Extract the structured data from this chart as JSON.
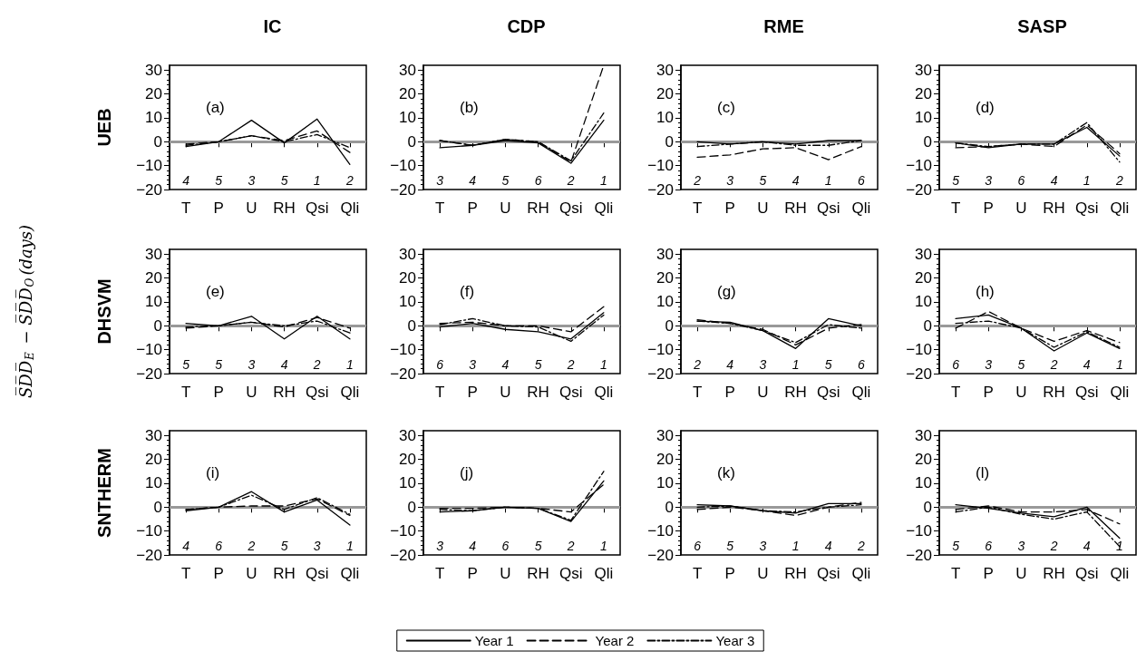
{
  "chart_data": [
    {
      "type": "line",
      "title": "IC",
      "ylabel": "UEB",
      "categories": [
        "T",
        "P",
        "U",
        "RH",
        "Qsi",
        "Qli"
      ],
      "ylim": [
        -20,
        32
      ],
      "yticks": [
        -20,
        -10,
        0,
        10,
        20,
        30
      ],
      "marker": "none",
      "ref_lines": [
        {
          "axis": "y",
          "value": 0,
          "color": "#999999"
        }
      ],
      "annotations": [
        "(a)",
        "4",
        "5",
        "3",
        "5",
        "1",
        "2"
      ],
      "series": [
        {
          "color": "#000000",
          "line_style": "solid",
          "values": [
            -2,
            0,
            9,
            -0.5,
            9.5,
            -9.5
          ]
        },
        {
          "color": "#000000",
          "line_style": "dashed",
          "values": [
            -1,
            0,
            2.5,
            0.5,
            4.5,
            -4.5
          ]
        },
        {
          "color": "#000000",
          "line_style": "dashdot",
          "values": [
            -1.5,
            0,
            2.5,
            0,
            3,
            -2.5
          ]
        }
      ]
    },
    {
      "type": "line",
      "title": "CDP",
      "categories": [
        "T",
        "P",
        "U",
        "RH",
        "Qsi",
        "Qli"
      ],
      "ylim": [
        -20,
        32
      ],
      "yticks": [
        -20,
        -10,
        0,
        10,
        20,
        30
      ],
      "marker": "none",
      "ref_lines": [
        {
          "axis": "y",
          "value": 0,
          "color": "#999999"
        }
      ],
      "annotations": [
        "(b)",
        "3",
        "4",
        "5",
        "6",
        "2",
        "1"
      ],
      "series": [
        {
          "color": "#000000",
          "line_style": "solid",
          "values": [
            -2.5,
            -1.5,
            0.5,
            -0.5,
            -9,
            9
          ]
        },
        {
          "color": "#000000",
          "line_style": "dashed",
          "values": [
            0.5,
            -1.5,
            1,
            0,
            -8.5,
            32
          ]
        },
        {
          "color": "#000000",
          "line_style": "dashdot",
          "values": [
            0.5,
            -1.5,
            1,
            0,
            -8,
            12
          ]
        }
      ]
    },
    {
      "type": "line",
      "title": "RME",
      "categories": [
        "T",
        "P",
        "U",
        "RH",
        "Qsi",
        "Qli"
      ],
      "ylim": [
        -20,
        32
      ],
      "yticks": [
        -20,
        -10,
        0,
        10,
        20,
        30
      ],
      "marker": "none",
      "ref_lines": [
        {
          "axis": "y",
          "value": 0,
          "color": "#999999"
        }
      ],
      "annotations": [
        "(c)",
        "2",
        "3",
        "5",
        "4",
        "1",
        "6"
      ],
      "series": [
        {
          "color": "#000000",
          "line_style": "solid",
          "values": [
            0,
            -1,
            0,
            -1,
            0.5,
            0.5
          ]
        },
        {
          "color": "#000000",
          "line_style": "dashed",
          "values": [
            -6.5,
            -5.5,
            -3,
            -2.5,
            -7.5,
            -2
          ]
        },
        {
          "color": "#000000",
          "line_style": "dashdot",
          "values": [
            -2,
            -1,
            0,
            -1.5,
            -1.5,
            0.5
          ]
        }
      ]
    },
    {
      "type": "line",
      "title": "SASP",
      "categories": [
        "T",
        "P",
        "U",
        "RH",
        "Qsi",
        "Qli"
      ],
      "ylim": [
        -20,
        32
      ],
      "yticks": [
        -20,
        -10,
        0,
        10,
        20,
        30
      ],
      "marker": "none",
      "ref_lines": [
        {
          "axis": "y",
          "value": 0,
          "color": "#999999"
        }
      ],
      "annotations": [
        "(d)",
        "5",
        "3",
        "6",
        "4",
        "1",
        "2"
      ],
      "series": [
        {
          "color": "#000000",
          "line_style": "solid",
          "values": [
            -0.5,
            -2.5,
            -1,
            -1,
            6,
            -6
          ]
        },
        {
          "color": "#000000",
          "line_style": "dashed",
          "values": [
            -2.5,
            -2,
            -1,
            -2,
            7,
            -5
          ]
        },
        {
          "color": "#000000",
          "line_style": "dashdot",
          "values": [
            -0.5,
            -2,
            -1,
            -1,
            8,
            -8.5
          ]
        }
      ]
    },
    {
      "type": "line",
      "ylabel": "DHSVM",
      "categories": [
        "T",
        "P",
        "U",
        "RH",
        "Qsi",
        "Qli"
      ],
      "ylim": [
        -20,
        32
      ],
      "yticks": [
        -20,
        -10,
        0,
        10,
        20,
        30
      ],
      "marker": "none",
      "ref_lines": [
        {
          "axis": "y",
          "value": 0,
          "color": "#999999"
        }
      ],
      "annotations": [
        "(e)",
        "5",
        "5",
        "3",
        "4",
        "2",
        "1",
        "S̅D̅D̅$_{E}$ − S̅D̅D̅$_{O}$(days)"
      ],
      "series": [
        {
          "color": "#000000",
          "line_style": "solid",
          "values": [
            1,
            0,
            4,
            -5.5,
            4,
            -5.5
          ]
        },
        {
          "color": "#000000",
          "line_style": "dashed",
          "values": [
            -1,
            0,
            1.5,
            -0.5,
            3.5,
            -1
          ]
        },
        {
          "color": "#000000",
          "line_style": "dashdot",
          "values": [
            -0.5,
            0,
            1.5,
            0,
            2,
            -3
          ]
        }
      ]
    },
    {
      "type": "line",
      "categories": [
        "T",
        "P",
        "U",
        "RH",
        "Qsi",
        "Qli"
      ],
      "ylim": [
        -20,
        32
      ],
      "yticks": [
        -20,
        -10,
        0,
        10,
        20,
        30
      ],
      "marker": "none",
      "ref_lines": [
        {
          "axis": "y",
          "value": 0,
          "color": "#999999"
        }
      ],
      "annotations": [
        "(f)",
        "6",
        "3",
        "4",
        "5",
        "2",
        "1"
      ],
      "series": [
        {
          "color": "#000000",
          "line_style": "solid",
          "values": [
            -0.5,
            1,
            -1.5,
            -2.5,
            -5.5,
            5.5
          ]
        },
        {
          "color": "#000000",
          "line_style": "dashed",
          "values": [
            1,
            1.5,
            0,
            0,
            -2.5,
            8
          ]
        },
        {
          "color": "#000000",
          "line_style": "dashdot",
          "values": [
            0.5,
            3,
            0,
            -0.5,
            -6.5,
            4.5
          ]
        }
      ]
    },
    {
      "type": "line",
      "categories": [
        "T",
        "P",
        "U",
        "RH",
        "Qsi",
        "Qli"
      ],
      "ylim": [
        -20,
        32
      ],
      "yticks": [
        -20,
        -10,
        0,
        10,
        20,
        30
      ],
      "marker": "none",
      "ref_lines": [
        {
          "axis": "y",
          "value": 0,
          "color": "#999999"
        }
      ],
      "annotations": [
        "(g)",
        "2",
        "4",
        "3",
        "1",
        "5",
        "6"
      ],
      "series": [
        {
          "color": "#000000",
          "line_style": "solid",
          "values": [
            2,
            1.5,
            -2,
            -9.5,
            3,
            0
          ]
        },
        {
          "color": "#000000",
          "line_style": "dashed",
          "values": [
            2.5,
            1,
            -1.5,
            -8,
            -1,
            0.5
          ]
        },
        {
          "color": "#000000",
          "line_style": "dashdot",
          "values": [
            2,
            1,
            -2,
            -7,
            0.5,
            -1
          ]
        }
      ]
    },
    {
      "type": "line",
      "categories": [
        "T",
        "P",
        "U",
        "RH",
        "Qsi",
        "Qli"
      ],
      "ylim": [
        -20,
        32
      ],
      "yticks": [
        -20,
        -10,
        0,
        10,
        20,
        30
      ],
      "marker": "none",
      "ref_lines": [
        {
          "axis": "y",
          "value": 0,
          "color": "#999999"
        }
      ],
      "annotations": [
        "(h)",
        "6",
        "3",
        "5",
        "2",
        "4",
        "1"
      ],
      "series": [
        {
          "color": "#000000",
          "line_style": "solid",
          "values": [
            3,
            4.5,
            -1,
            -10.5,
            -3,
            -9.5
          ]
        },
        {
          "color": "#000000",
          "line_style": "dashed",
          "values": [
            -1,
            6,
            -1,
            -6.5,
            -2,
            -7
          ]
        },
        {
          "color": "#000000",
          "line_style": "dashdot",
          "values": [
            1,
            2,
            -1,
            -9,
            -2.5,
            -9
          ]
        }
      ]
    },
    {
      "type": "line",
      "ylabel": "SNTHERM",
      "categories": [
        "T",
        "P",
        "U",
        "RH",
        "Qsi",
        "Qli"
      ],
      "ylim": [
        -20,
        32
      ],
      "yticks": [
        -20,
        -10,
        0,
        10,
        20,
        30
      ],
      "marker": "none",
      "ref_lines": [
        {
          "axis": "y",
          "value": 0,
          "color": "#999999"
        }
      ],
      "annotations": [
        "(i)",
        "4",
        "6",
        "2",
        "5",
        "3",
        "1"
      ],
      "series": [
        {
          "color": "#000000",
          "line_style": "solid",
          "values": [
            -1.5,
            0,
            6.5,
            -2,
            3,
            -7.5
          ]
        },
        {
          "color": "#000000",
          "line_style": "dashed",
          "values": [
            -1,
            0,
            0.5,
            0.5,
            3.5,
            -3.5
          ]
        },
        {
          "color": "#000000",
          "line_style": "dashdot",
          "values": [
            -1,
            0,
            5,
            -1,
            4,
            -3
          ]
        }
      ]
    },
    {
      "type": "line",
      "legend": "bottom",
      "categories": [
        "T",
        "P",
        "U",
        "RH",
        "Qsi",
        "Qli"
      ],
      "ylim": [
        -20,
        32
      ],
      "yticks": [
        -20,
        -10,
        0,
        10,
        20,
        30
      ],
      "marker": "none",
      "ref_lines": [
        {
          "axis": "y",
          "value": 0,
          "color": "#999999"
        }
      ],
      "annotations": [
        "(j)",
        "3",
        "4",
        "6",
        "5",
        "2",
        "1"
      ],
      "series": [
        {
          "name": "Year 1",
          "color": "#000000",
          "line_style": "solid",
          "values": [
            -2,
            -1.5,
            0,
            -0.5,
            -6,
            11
          ]
        },
        {
          "name": "Year 2",
          "color": "#000000",
          "line_style": "dashed",
          "values": [
            -0.5,
            -0.5,
            0,
            -0.5,
            -2,
            9.5
          ]
        },
        {
          "name": "Year 3",
          "color": "#000000",
          "line_style": "dashdot",
          "values": [
            -1,
            -1.5,
            0,
            -0.5,
            -5.5,
            15
          ]
        }
      ]
    },
    {
      "type": "line",
      "categories": [
        "T",
        "P",
        "U",
        "RH",
        "Qsi",
        "Qli"
      ],
      "ylim": [
        -20,
        32
      ],
      "yticks": [
        -20,
        -10,
        0,
        10,
        20,
        30
      ],
      "marker": "none",
      "ref_lines": [
        {
          "axis": "y",
          "value": 0,
          "color": "#999999"
        }
      ],
      "annotations": [
        "(k)",
        "6",
        "5",
        "3",
        "1",
        "4",
        "2"
      ],
      "series": [
        {
          "color": "#000000",
          "line_style": "solid",
          "values": [
            1,
            0.5,
            -1.5,
            -2.5,
            1.5,
            1.5
          ]
        },
        {
          "color": "#000000",
          "line_style": "dashed",
          "values": [
            -1,
            0,
            -1.5,
            -3.5,
            0,
            2
          ]
        },
        {
          "color": "#000000",
          "line_style": "dashdot",
          "values": [
            0,
            0.5,
            -1.5,
            -2,
            0,
            1
          ]
        }
      ]
    },
    {
      "type": "line",
      "categories": [
        "T",
        "P",
        "U",
        "RH",
        "Qsi",
        "Qli"
      ],
      "ylim": [
        -20,
        32
      ],
      "yticks": [
        -20,
        -10,
        0,
        10,
        20,
        30
      ],
      "marker": "none",
      "ref_lines": [
        {
          "axis": "y",
          "value": 0,
          "color": "#999999"
        }
      ],
      "annotations": [
        "(l)",
        "5",
        "6",
        "3",
        "2",
        "4",
        "1"
      ],
      "series": [
        {
          "color": "#000000",
          "line_style": "solid",
          "values": [
            1,
            -0.5,
            -2.5,
            -4,
            0,
            -13
          ]
        },
        {
          "color": "#000000",
          "line_style": "dashed",
          "values": [
            -1,
            0.5,
            -2,
            -2,
            -1,
            -7
          ]
        },
        {
          "color": "#000000",
          "line_style": "dashdot",
          "values": [
            -2,
            0,
            -3,
            -5,
            -2,
            -16.5
          ]
        }
      ]
    }
  ]
}
